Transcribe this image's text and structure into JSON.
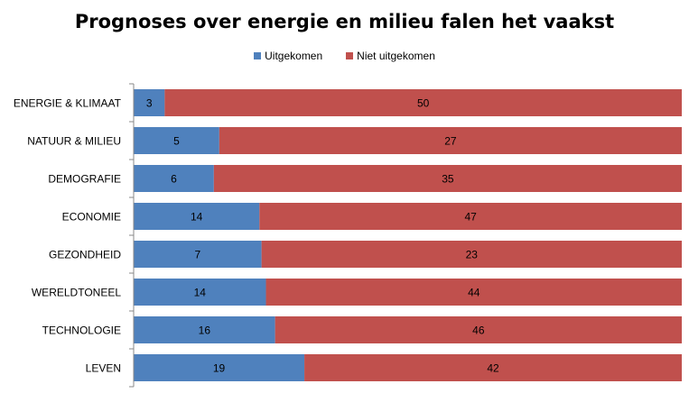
{
  "chart_data": {
    "type": "bar",
    "orientation": "horizontal",
    "stacked": "percent",
    "title": "Prognoses over energie en milieu falen het vaakst",
    "xlabel": "",
    "ylabel": "",
    "legend_position": "top",
    "grid": false,
    "categories": [
      "ENERGIE & KLIMAAT",
      "NATUUR & MILIEU",
      "DEMOGRAFIE",
      "ECONOMIE",
      "GEZONDHEID",
      "WERELDTONEEL",
      "TECHNOLOGIE",
      "LEVEN"
    ],
    "series": [
      {
        "name": "Uitgekomen",
        "color": "#4f81bd",
        "values": [
          3,
          5,
          6,
          14,
          7,
          14,
          16,
          19
        ]
      },
      {
        "name": "Niet uitgekomen",
        "color": "#c0504d",
        "values": [
          50,
          27,
          35,
          47,
          23,
          44,
          46,
          42
        ]
      }
    ]
  }
}
